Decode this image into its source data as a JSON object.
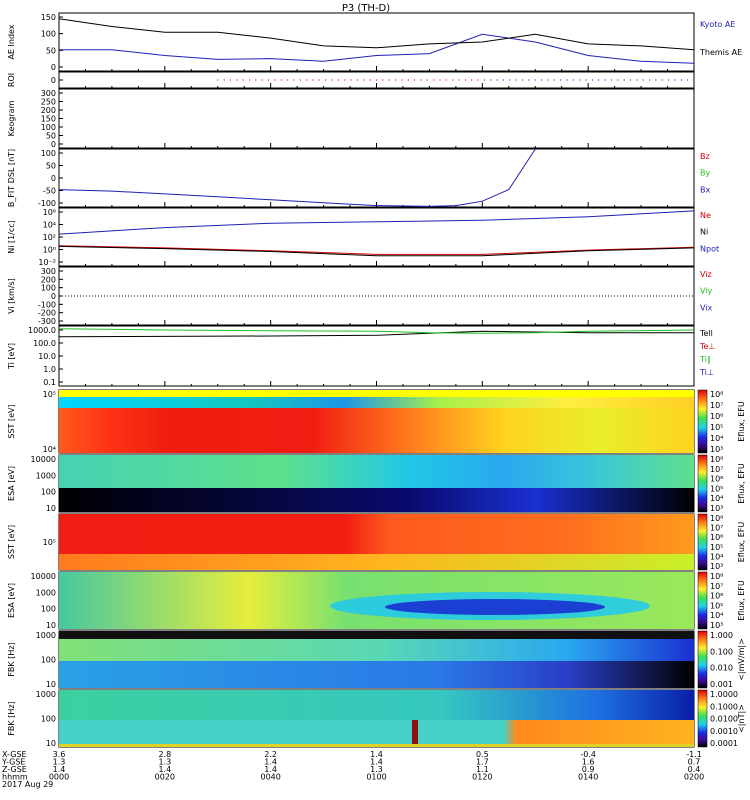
{
  "title": "P3 (TH-D)",
  "colors": {
    "kyoto": "#1f1fb4",
    "themis": "#000000",
    "bz": "#d40000",
    "by": "#21c021",
    "bx": "#1f1fb4",
    "ne": "#d40000",
    "ni": "#000000",
    "npot": "#1f1fb4",
    "vz": "#d40000",
    "vy": "#21c021",
    "vx": "#1f1fb4",
    "teli": "#000000",
    "tperp_e": "#d40000",
    "tipar": "#21c021",
    "tiperp": "#1f1fb4"
  },
  "chart_data": [
    {
      "panel": "ae",
      "type": "line",
      "ylabel": "AE Index",
      "yticks": [
        "150",
        "100",
        "50",
        "0"
      ],
      "ylim": [
        0,
        150
      ],
      "x": [
        0,
        10,
        20,
        30,
        40,
        50,
        60,
        70,
        80,
        90,
        100,
        110,
        120
      ],
      "series": [
        {
          "name": "Kyoto AE",
          "color_key": "kyoto",
          "values": [
            55,
            55,
            40,
            30,
            32,
            25,
            40,
            45,
            95,
            75,
            40,
            25,
            20
          ]
        },
        {
          "name": "Themis AE",
          "color_key": "themis",
          "values": [
            135,
            115,
            100,
            100,
            85,
            65,
            60,
            70,
            75,
            95,
            70,
            65,
            55
          ]
        }
      ]
    },
    {
      "panel": "roi",
      "type": "scatter",
      "ylabel": "ROI",
      "yticks": [
        "0"
      ]
    },
    {
      "panel": "keogram",
      "type": "heatmap",
      "ylabel": "Keogram",
      "yticks": [
        "300",
        "250",
        "200",
        "150",
        "100",
        "50",
        "0"
      ],
      "ylim": [
        0,
        300
      ]
    },
    {
      "panel": "bfield",
      "type": "line",
      "ylabel": "B_FIT DSL [nT]",
      "yticks": [
        "100",
        "50",
        "0",
        "-50",
        "-100"
      ],
      "ylim": [
        -100,
        100
      ],
      "x": [
        0,
        10,
        20,
        30,
        40,
        50,
        60,
        70,
        75,
        80,
        85,
        90
      ],
      "series": [
        {
          "name": "Bx",
          "color_key": "bx",
          "values": [
            -40,
            -45,
            -55,
            -65,
            -75,
            -85,
            -95,
            -98,
            -95,
            -80,
            -40,
            100
          ]
        }
      ],
      "legend": [
        "Bz",
        "By",
        "Bx"
      ]
    },
    {
      "panel": "density",
      "type": "line",
      "ylabel": "Ni [1/cc]",
      "yticks": [
        "10⁶",
        "10⁴",
        "10²",
        "10⁰",
        "10⁻²"
      ],
      "ylim": [
        -2,
        6
      ],
      "x": [
        0,
        20,
        40,
        60,
        80,
        100,
        120
      ],
      "series": [
        {
          "name": "Ne",
          "color_key": "ne",
          "values": [
            0.8,
            0.5,
            0.1,
            -0.4,
            -0.4,
            0.2,
            0.6
          ]
        },
        {
          "name": "Ni",
          "color_key": "ni",
          "values": [
            0.7,
            0.4,
            0.0,
            -0.6,
            -0.6,
            0.1,
            0.5
          ]
        },
        {
          "name": "Npot",
          "color_key": "npot",
          "values": [
            2.4,
            3.3,
            3.9,
            4.1,
            4.3,
            4.8,
            5.6
          ]
        }
      ]
    },
    {
      "panel": "velocity",
      "type": "line",
      "ylabel": "Vi [km/s]",
      "yticks": [
        "300",
        "200",
        "100",
        "0",
        "-100",
        "-200",
        "-300"
      ],
      "ylim": [
        -300,
        300
      ],
      "legend": [
        "Viz",
        "Viy",
        "Vix"
      ]
    },
    {
      "panel": "temperature",
      "type": "line",
      "ylabel": "Ti [eV]",
      "yticks": [
        "1000.0",
        "100.0",
        "10.0",
        "1.0",
        "0.1"
      ],
      "ylim": [
        -1,
        3.5
      ],
      "x": [
        0,
        20,
        40,
        60,
        70,
        80,
        90,
        100,
        120
      ],
      "series": [
        {
          "name": "Tell",
          "color_key": "teli",
          "values": [
            2.7,
            2.72,
            2.75,
            2.8,
            2.95,
            3.1,
            3.05,
            3.0,
            3.0
          ]
        },
        {
          "name": "Ti∥",
          "color_key": "tipar",
          "values": [
            3.3,
            3.2,
            3.15,
            3.1,
            3.0,
            2.95,
            3.0,
            3.1,
            3.2
          ]
        }
      ],
      "legend": [
        "Tell",
        "Te⊥",
        "Ti∥",
        "Ti⊥"
      ]
    },
    {
      "panel": "sst_full_1",
      "type": "heatmap",
      "ylabel": "SST [eV]",
      "yticks": [
        "10⁵",
        "10⁴"
      ],
      "colorbar": {
        "label": "Eflux, EFU",
        "ticks": [
          "10⁸",
          "10⁷",
          "10⁶",
          "10⁵",
          "10⁴",
          "10³"
        ]
      }
    },
    {
      "panel": "esa_full_1",
      "type": "heatmap",
      "ylabel": "ESA [eV]",
      "yticks": [
        "10000",
        "1000",
        "100",
        "10"
      ],
      "colorbar": {
        "label": "Eflux, EFU",
        "ticks": [
          "10⁸",
          "10⁷",
          "10⁶",
          "10⁵",
          "10⁴",
          "10³"
        ]
      }
    },
    {
      "panel": "sst_full_2",
      "type": "heatmap",
      "ylabel": "SST [eV]",
      "yticks": [
        "10⁵"
      ],
      "colorbar": {
        "label": "Eflux, EFU",
        "ticks": [
          "10⁸",
          "10⁷",
          "10⁶",
          "10⁵",
          "10⁴",
          "10³"
        ]
      }
    },
    {
      "panel": "esa_full_2",
      "type": "heatmap",
      "ylabel": "ESA [eV]",
      "yticks": [
        "10000",
        "1000",
        "100",
        "10"
      ],
      "colorbar": {
        "label": "Eflux, EFU",
        "ticks": [
          "10⁸",
          "10⁷",
          "10⁶",
          "10⁵",
          "10⁴",
          "10³"
        ]
      }
    },
    {
      "panel": "fbk_e",
      "type": "heatmap",
      "ylabel": "FBK [Hz]",
      "yticks": [
        "1000",
        "100",
        "10"
      ],
      "colorbar": {
        "label": "<|mV/m|>",
        "ticks": [
          "1.000",
          "0.100",
          "0.010",
          "0.001"
        ]
      }
    },
    {
      "panel": "fbk_b",
      "type": "heatmap",
      "ylabel": "FBK [Hz]",
      "yticks": [
        "1000",
        "100",
        "10"
      ],
      "colorbar": {
        "label": "<|nT|>",
        "ticks": [
          "1.0000",
          "0.1000",
          "0.0100",
          "0.0010",
          "0.0001"
        ]
      }
    }
  ],
  "footer": {
    "row_labels": [
      "X-GSE",
      "Y-GSE",
      "Z-GSE",
      "hhmm",
      "2017 Aug 29"
    ],
    "columns": [
      {
        "vals": [
          "3.6",
          "1.3",
          "1.4",
          "0000"
        ]
      },
      {
        "vals": [
          "2.8",
          "1.3",
          "1.4",
          "0020"
        ]
      },
      {
        "vals": [
          "2.2",
          "1.4",
          "1.4",
          "0040"
        ]
      },
      {
        "vals": [
          "1.4",
          "1.4",
          "1.3",
          "0100"
        ]
      },
      {
        "vals": [
          "0.5",
          "1.7",
          "1.1",
          "0120"
        ]
      },
      {
        "vals": [
          "-0.4",
          "1.6",
          "0.9",
          "0140"
        ]
      },
      {
        "vals": [
          "-1.1",
          "0.7",
          "0.4",
          "0200"
        ]
      }
    ]
  }
}
